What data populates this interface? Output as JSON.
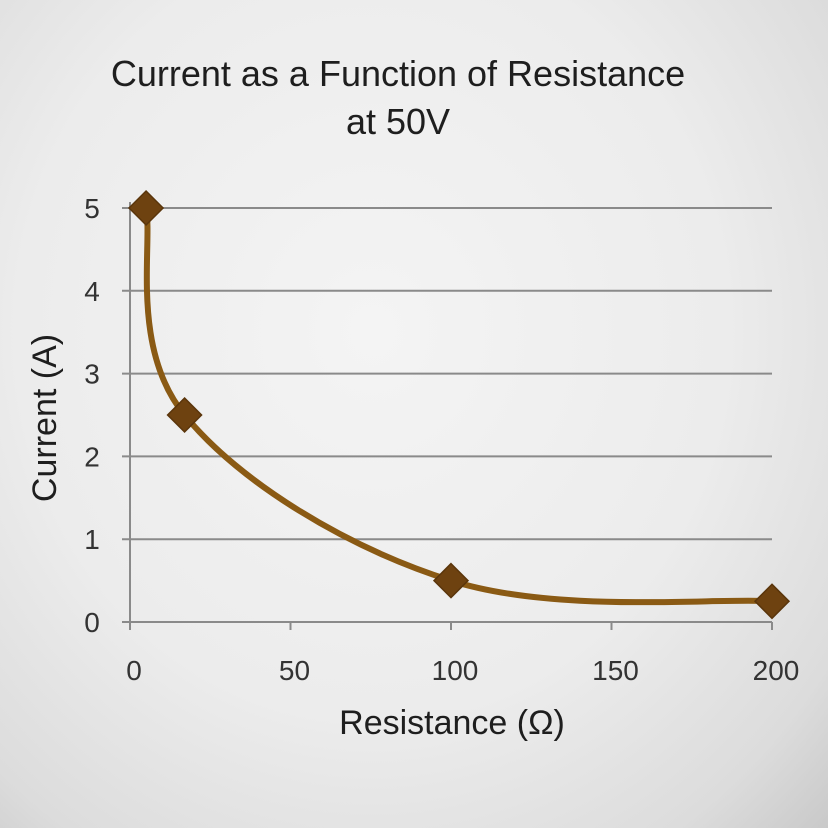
{
  "chart_data": {
    "type": "line",
    "title_lines": [
      "Current as a Function of Resistance",
      "at 50V"
    ],
    "xlabel": "Resistance (Ω)",
    "ylabel": "Current (A)",
    "xlim": [
      0,
      200
    ],
    "ylim": [
      0,
      5
    ],
    "xticks": [
      "0",
      "50",
      "100",
      "150",
      "200"
    ],
    "yticks": [
      "0",
      "1",
      "2",
      "3",
      "4",
      "5"
    ],
    "grid": "horizontal",
    "series": [
      {
        "name": "Current",
        "color": "#7a4b12",
        "marker_color": "#6e4210",
        "line_color": "#8a5a14",
        "points": [
          {
            "x": 5,
            "y": 5
          },
          {
            "x": 17,
            "y": 2.5
          },
          {
            "x": 100,
            "y": 0.5
          },
          {
            "x": 200,
            "y": 0.25
          }
        ]
      }
    ]
  }
}
